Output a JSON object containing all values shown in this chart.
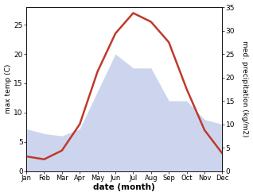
{
  "months": [
    "Jan",
    "Feb",
    "Mar",
    "Apr",
    "May",
    "Jun",
    "Jul",
    "Aug",
    "Sep",
    "Oct",
    "Nov",
    "Dec"
  ],
  "temperature": [
    2.5,
    2.0,
    3.5,
    8.0,
    17.0,
    23.5,
    27.0,
    25.5,
    22.0,
    14.0,
    7.0,
    3.0
  ],
  "precipitation": [
    9.0,
    8.0,
    7.5,
    9.0,
    17.0,
    25.0,
    22.0,
    22.0,
    15.0,
    15.0,
    11.0,
    10.0
  ],
  "temp_color": "#c0392b",
  "precip_fill_color": "#b8c4e8",
  "temp_ylim": [
    0,
    28
  ],
  "precip_ylim": [
    0,
    35
  ],
  "temp_yticks": [
    0,
    5,
    10,
    15,
    20,
    25
  ],
  "precip_yticks": [
    0,
    5,
    10,
    15,
    20,
    25,
    30,
    35
  ],
  "ylabel_left": "max temp (C)",
  "ylabel_right": "med. precipitation (kg/m2)",
  "xlabel": "date (month)",
  "temp_linewidth": 1.8,
  "background_color": "#ffffff",
  "fig_width": 3.18,
  "fig_height": 2.47,
  "dpi": 100
}
